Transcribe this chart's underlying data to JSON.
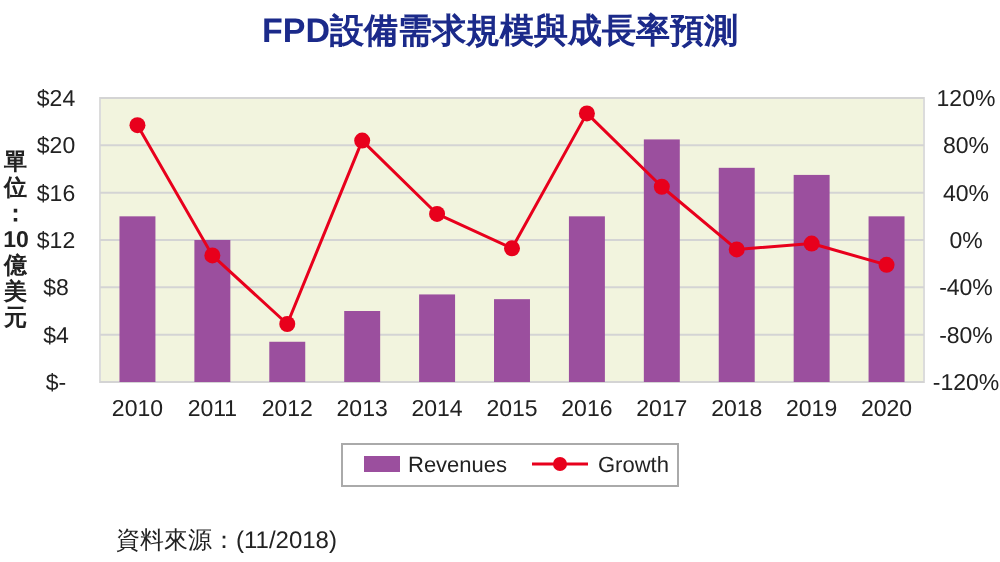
{
  "chart_data": {
    "type": "bar",
    "title": "FPD設備需求規模與成長率預測",
    "ylabel": "單位：10億美元",
    "categories": [
      "2010",
      "2011",
      "2012",
      "2013",
      "2014",
      "2015",
      "2016",
      "2017",
      "2018",
      "2019",
      "2020"
    ],
    "series": [
      {
        "name": "Revenues",
        "color": "#9b4f9e",
        "values": [
          14.0,
          12.0,
          3.4,
          6.0,
          7.4,
          7.0,
          14.0,
          20.5,
          18.1,
          17.5,
          14.0
        ]
      },
      {
        "name": "Growth",
        "type": "line",
        "axis": "y2",
        "color": "#e8001c",
        "values": [
          97,
          -13,
          -71,
          84,
          22,
          -7,
          107,
          45,
          -8,
          -3,
          -21
        ]
      }
    ],
    "ylim": [
      0,
      24
    ],
    "yticks": [
      {
        "value": 0,
        "label": "$-"
      },
      {
        "value": 4,
        "label": "$4"
      },
      {
        "value": 8,
        "label": "$8"
      },
      {
        "value": 12,
        "label": "$12"
      },
      {
        "value": 16,
        "label": "$16"
      },
      {
        "value": 20,
        "label": "$20"
      },
      {
        "value": 24,
        "label": "$24"
      }
    ],
    "y2lim": [
      -120,
      120
    ],
    "y2ticks": [
      {
        "value": -120,
        "label": "-120%"
      },
      {
        "value": -80,
        "label": "-80%"
      },
      {
        "value": -40,
        "label": "-40%"
      },
      {
        "value": 0,
        "label": "0%"
      },
      {
        "value": 40,
        "label": "40%"
      },
      {
        "value": 80,
        "label": "80%"
      },
      {
        "value": 120,
        "label": "120%"
      }
    ],
    "grid": "y",
    "legend": "bottom",
    "marker": "circle",
    "line_style": "solid",
    "annotations": [
      "資料來源：(11/2018)"
    ]
  }
}
